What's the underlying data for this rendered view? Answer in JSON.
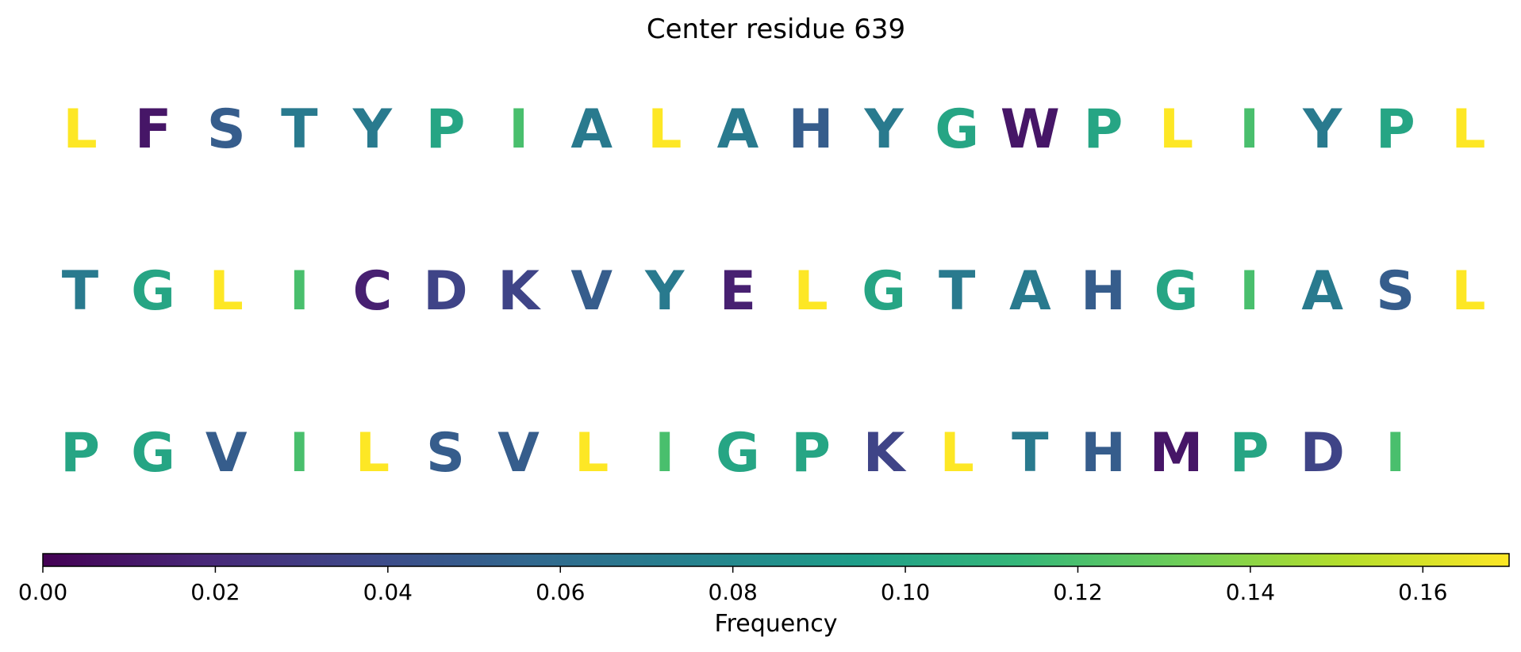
{
  "chart_data": {
    "type": "heatmap",
    "title": "Center residue 639",
    "rows": [
      [
        "L",
        "F",
        "S",
        "T",
        "Y",
        "P",
        "I",
        "A",
        "L",
        "A",
        "H",
        "Y",
        "G",
        "W",
        "P",
        "L",
        "I",
        "Y",
        "P",
        "L"
      ],
      [
        "T",
        "G",
        "L",
        "I",
        "C",
        "D",
        "K",
        "V",
        "Y",
        "E",
        "L",
        "G",
        "T",
        "A",
        "H",
        "G",
        "I",
        "A",
        "S",
        "L"
      ],
      [
        "P",
        "G",
        "V",
        "I",
        "L",
        "S",
        "V",
        "L",
        "I",
        "G",
        "P",
        "K",
        "L",
        "T",
        "H",
        "M",
        "P",
        "D",
        "I"
      ]
    ],
    "residue_frequency": {
      "L": 0.17,
      "I": 0.12,
      "G": 0.1,
      "P": 0.1,
      "T": 0.07,
      "Y": 0.07,
      "A": 0.07,
      "H": 0.05,
      "S": 0.05,
      "V": 0.05,
      "K": 0.035,
      "D": 0.035,
      "E": 0.015,
      "C": 0.015,
      "F": 0.01,
      "W": 0.01,
      "M": 0.01
    },
    "colorbar": {
      "label": "Frequency",
      "range": [
        0,
        0.17
      ],
      "colormap": "viridis",
      "ticks": [
        "0.00",
        "0.02",
        "0.04",
        "0.06",
        "0.08",
        "0.10",
        "0.12",
        "0.14",
        "0.16"
      ]
    }
  }
}
